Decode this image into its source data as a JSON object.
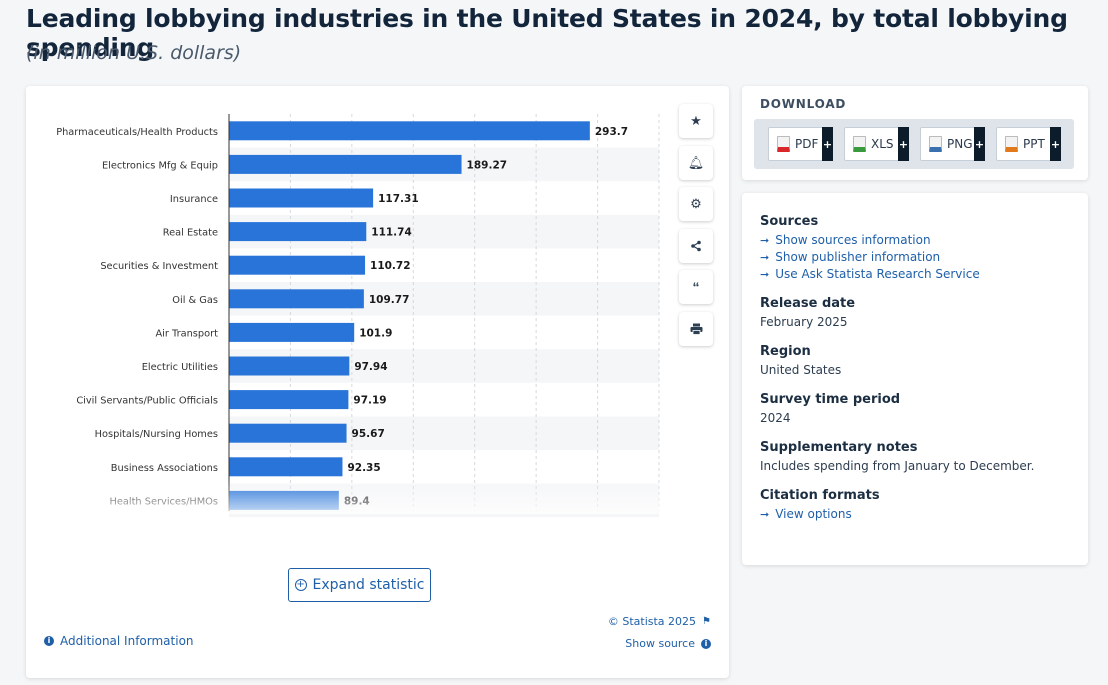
{
  "page": {
    "title": "Leading lobbying industries in the United States in 2024, by total lobbying spending",
    "subtitle": "(in million U.S. dollars)"
  },
  "chart_data": {
    "type": "bar",
    "orientation": "horizontal",
    "categories": [
      "Pharmaceuticals/Health Products",
      "Electronics Mfg & Equip",
      "Insurance",
      "Real Estate",
      "Securities & Investment",
      "Oil & Gas",
      "Air Transport",
      "Electric Utilities",
      "Civil Servants/Public Officials",
      "Hospitals/Nursing Homes",
      "Business Associations",
      "Health Services/HMOs"
    ],
    "values": [
      293.7,
      189.27,
      117.31,
      111.74,
      110.72,
      109.77,
      101.9,
      97.94,
      97.19,
      95.67,
      92.35,
      89.4
    ],
    "value_labels": [
      "293.7",
      "189.27",
      "117.31",
      "111.74",
      "110.72",
      "109.77",
      "101.9",
      "97.94",
      "97.19",
      "95.67",
      "92.35",
      "89.4"
    ],
    "xlim": [
      0,
      350
    ],
    "grid": true,
    "bar_color": "#2874d8",
    "title": "",
    "xlabel": "",
    "ylabel": ""
  },
  "toolbar": {
    "icons": [
      "star-icon",
      "bell-icon",
      "gear-icon",
      "share-icon",
      "quote-icon",
      "print-icon"
    ]
  },
  "actions": {
    "expand_label": "Expand statistic",
    "additional_info": "Additional Information",
    "copyright": "© Statista 2025",
    "show_source": "Show source"
  },
  "download": {
    "title": "DOWNLOAD",
    "buttons": [
      {
        "label": "PDF",
        "color": "#d8262a"
      },
      {
        "label": "XLS",
        "color": "#3a9a3e"
      },
      {
        "label": "PNG",
        "color": "#3a6fb0"
      },
      {
        "label": "PPT",
        "color": "#e07a1c"
      }
    ]
  },
  "meta": {
    "sources_title": "Sources",
    "source_links": [
      "Show sources information",
      "Show publisher information",
      "Use Ask Statista Research Service"
    ],
    "release_title": "Release date",
    "release_value": "February 2025",
    "region_title": "Region",
    "region_value": "United States",
    "survey_title": "Survey time period",
    "survey_value": "2024",
    "notes_title": "Supplementary notes",
    "notes_value": "Includes spending from January to December.",
    "citation_title": "Citation formats",
    "citation_link": "View options"
  },
  "colors": {
    "accent": "#1f5fa8",
    "bar": "#2874d8"
  }
}
